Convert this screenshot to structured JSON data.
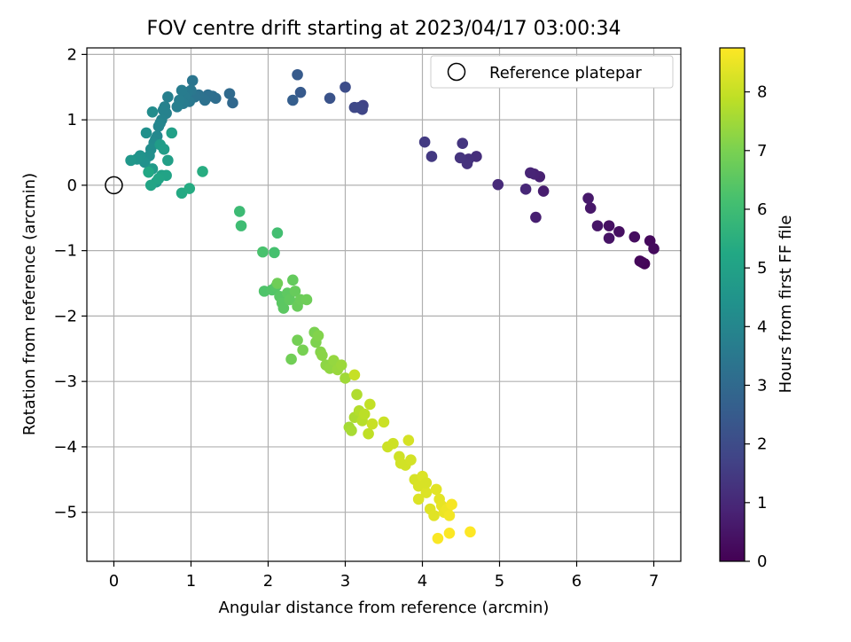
{
  "chart_data": {
    "type": "scatter",
    "title": "FOV centre drift starting at 2023/04/17 03:00:34",
    "xlabel": "Angular distance from reference (arcmin)",
    "ylabel": "Rotation from reference (arcmin)",
    "xlim": [
      -0.35,
      7.35
    ],
    "ylim": [
      -5.75,
      2.1
    ],
    "xticks": [
      0,
      1,
      2,
      3,
      4,
      5,
      6,
      7
    ],
    "xtick_labels": [
      "0",
      "1",
      "2",
      "3",
      "4",
      "5",
      "6",
      "7"
    ],
    "yticks": [
      2,
      1,
      0,
      -1,
      -2,
      -3,
      -4,
      -5
    ],
    "ytick_labels": [
      "2",
      "1",
      "0",
      "−1",
      "−2",
      "−3",
      "−4",
      "−5"
    ],
    "grid": true,
    "legend_position": "top-right",
    "legend": [
      {
        "label": "Reference platepar",
        "marker": "open-circle"
      }
    ],
    "reference_point": {
      "x": 0,
      "y": 0
    },
    "colorbar": {
      "label": "Hours from first FF file",
      "range": [
        0,
        8.75
      ],
      "ticks": [
        0,
        1,
        2,
        3,
        4,
        5,
        6,
        7,
        8
      ],
      "tick_labels": [
        "0",
        "1",
        "2",
        "3",
        "4",
        "5",
        "6",
        "7",
        "8"
      ],
      "colormap": "viridis"
    },
    "points": [
      [
        6.88,
        -1.2,
        0.05
      ],
      [
        6.85,
        -1.18,
        0.1
      ],
      [
        6.82,
        -1.16,
        0.15
      ],
      [
        6.95,
        -0.85,
        0.2
      ],
      [
        7.0,
        -0.97,
        0.25
      ],
      [
        6.75,
        -0.79,
        0.3
      ],
      [
        6.55,
        -0.71,
        0.35
      ],
      [
        6.42,
        -0.62,
        0.4
      ],
      [
        6.42,
        -0.81,
        0.45
      ],
      [
        6.27,
        -0.62,
        0.5
      ],
      [
        6.18,
        -0.35,
        0.55
      ],
      [
        6.15,
        -0.2,
        0.6
      ],
      [
        5.57,
        -0.09,
        0.7
      ],
      [
        5.47,
        -0.49,
        0.75
      ],
      [
        5.52,
        0.13,
        0.8
      ],
      [
        5.45,
        0.17,
        0.85
      ],
      [
        5.4,
        0.19,
        0.9
      ],
      [
        5.34,
        -0.06,
        0.95
      ],
      [
        4.98,
        0.01,
        1.05
      ],
      [
        4.7,
        0.44,
        1.15
      ],
      [
        4.6,
        0.4,
        1.2
      ],
      [
        4.58,
        0.33,
        1.25
      ],
      [
        4.49,
        0.42,
        1.3
      ],
      [
        4.52,
        0.64,
        1.35
      ],
      [
        4.12,
        0.44,
        1.45
      ],
      [
        4.03,
        0.66,
        1.5
      ],
      [
        3.23,
        1.22,
        1.75
      ],
      [
        3.22,
        1.16,
        1.8
      ],
      [
        3.18,
        1.19,
        1.85
      ],
      [
        3.12,
        1.19,
        1.9
      ],
      [
        3.0,
        1.5,
        2.05
      ],
      [
        2.8,
        1.33,
        2.25
      ],
      [
        2.42,
        1.42,
        2.45
      ],
      [
        2.38,
        1.69,
        2.5
      ],
      [
        2.32,
        1.3,
        2.6
      ],
      [
        1.54,
        1.26,
        2.95
      ],
      [
        1.5,
        1.4,
        3.0
      ],
      [
        1.32,
        1.33,
        3.1
      ],
      [
        1.28,
        1.36,
        3.15
      ],
      [
        1.22,
        1.38,
        3.2
      ],
      [
        1.18,
        1.3,
        3.25
      ],
      [
        1.1,
        1.38,
        3.3
      ],
      [
        1.05,
        1.35,
        3.35
      ],
      [
        1.02,
        1.6,
        3.4
      ],
      [
        1.0,
        1.45,
        3.45
      ],
      [
        0.98,
        1.28,
        3.5
      ],
      [
        0.95,
        1.42,
        3.55
      ],
      [
        0.92,
        1.35,
        3.6
      ],
      [
        0.9,
        1.25,
        3.62
      ],
      [
        0.88,
        1.45,
        3.65
      ],
      [
        0.85,
        1.3,
        3.68
      ],
      [
        0.82,
        1.2,
        3.7
      ],
      [
        0.7,
        1.35,
        3.75
      ],
      [
        0.68,
        1.1,
        3.8
      ],
      [
        0.66,
        1.2,
        3.82
      ],
      [
        0.64,
        1.15,
        3.85
      ],
      [
        0.62,
        1.0,
        3.9
      ],
      [
        0.6,
        0.95,
        3.95
      ],
      [
        0.58,
        0.9,
        4.0
      ],
      [
        0.56,
        0.75,
        4.05
      ],
      [
        0.54,
        0.7,
        4.1
      ],
      [
        0.52,
        0.65,
        4.15
      ],
      [
        0.5,
        1.12,
        4.2
      ],
      [
        0.48,
        0.55,
        4.25
      ],
      [
        0.46,
        0.45,
        4.3
      ],
      [
        0.42,
        0.8,
        4.35
      ],
      [
        0.4,
        0.35,
        4.4
      ],
      [
        0.34,
        0.45,
        4.45
      ],
      [
        0.3,
        0.4,
        4.5
      ],
      [
        0.22,
        0.38,
        4.6
      ],
      [
        0.5,
        0.25,
        4.7
      ],
      [
        0.55,
        0.05,
        4.75
      ],
      [
        0.6,
        0.62,
        4.8
      ],
      [
        0.65,
        0.55,
        4.85
      ],
      [
        0.7,
        0.38,
        4.9
      ],
      [
        0.75,
        0.8,
        4.95
      ],
      [
        0.62,
        0.15,
        5.0
      ],
      [
        0.68,
        0.15,
        5.05
      ],
      [
        0.48,
        0.0,
        5.1
      ],
      [
        0.58,
        0.1,
        5.15
      ],
      [
        0.45,
        0.2,
        5.2
      ],
      [
        0.88,
        -0.12,
        5.3
      ],
      [
        0.98,
        -0.05,
        5.35
      ],
      [
        1.15,
        0.21,
        5.4
      ],
      [
        1.63,
        -0.4,
        5.95
      ],
      [
        1.65,
        -0.62,
        6.0
      ],
      [
        2.12,
        -0.73,
        6.1
      ],
      [
        2.08,
        -1.03,
        6.15
      ],
      [
        1.93,
        -1.02,
        6.2
      ],
      [
        1.95,
        -1.62,
        6.3
      ],
      [
        2.05,
        -1.6,
        6.35
      ],
      [
        2.1,
        -1.55,
        6.4
      ],
      [
        2.15,
        -1.7,
        6.45
      ],
      [
        2.18,
        -1.8,
        6.5
      ],
      [
        2.2,
        -1.88,
        6.52
      ],
      [
        2.25,
        -1.65,
        6.55
      ],
      [
        2.28,
        -1.75,
        6.6
      ],
      [
        2.32,
        -1.45,
        6.65
      ],
      [
        2.35,
        -1.62,
        6.7
      ],
      [
        2.38,
        -1.85,
        6.72
      ],
      [
        2.42,
        -1.75,
        6.75
      ],
      [
        2.5,
        -1.75,
        6.8
      ],
      [
        2.12,
        -1.5,
        6.82
      ],
      [
        2.3,
        -2.66,
        6.85
      ],
      [
        2.38,
        -2.37,
        6.9
      ],
      [
        2.45,
        -2.52,
        6.95
      ],
      [
        2.6,
        -2.25,
        7.0
      ],
      [
        2.62,
        -2.4,
        7.05
      ],
      [
        2.65,
        -2.3,
        7.1
      ],
      [
        2.68,
        -2.55,
        7.15
      ],
      [
        2.7,
        -2.6,
        7.2
      ],
      [
        2.75,
        -2.75,
        7.25
      ],
      [
        2.8,
        -2.8,
        7.3
      ],
      [
        2.85,
        -2.68,
        7.35
      ],
      [
        2.9,
        -2.82,
        7.4
      ],
      [
        2.95,
        -2.75,
        7.45
      ],
      [
        3.0,
        -2.95,
        7.5
      ],
      [
        3.05,
        -3.7,
        7.55
      ],
      [
        3.08,
        -3.75,
        7.6
      ],
      [
        3.12,
        -3.55,
        7.65
      ],
      [
        3.15,
        -3.2,
        7.7
      ],
      [
        3.18,
        -3.45,
        7.75
      ],
      [
        3.22,
        -3.6,
        7.8
      ],
      [
        3.25,
        -3.5,
        7.85
      ],
      [
        3.3,
        -3.8,
        7.9
      ],
      [
        3.32,
        -3.35,
        7.95
      ],
      [
        3.12,
        -2.9,
        8.0
      ],
      [
        3.35,
        -3.65,
        8.02
      ],
      [
        3.5,
        -3.62,
        8.05
      ],
      [
        3.55,
        -4.0,
        8.08
      ],
      [
        3.62,
        -3.95,
        8.1
      ],
      [
        3.7,
        -4.15,
        8.12
      ],
      [
        3.78,
        -4.28,
        8.15
      ],
      [
        3.85,
        -4.2,
        8.18
      ],
      [
        3.82,
        -3.9,
        8.2
      ],
      [
        3.9,
        -4.5,
        8.22
      ],
      [
        3.95,
        -4.6,
        8.25
      ],
      [
        4.0,
        -4.45,
        8.28
      ],
      [
        4.05,
        -4.7,
        8.3
      ],
      [
        4.1,
        -4.95,
        8.32
      ],
      [
        4.15,
        -5.05,
        8.35
      ],
      [
        4.18,
        -4.65,
        8.38
      ],
      [
        4.22,
        -4.8,
        8.4
      ],
      [
        4.25,
        -4.9,
        8.45
      ],
      [
        4.28,
        -5.0,
        8.5
      ],
      [
        4.32,
        -4.95,
        8.55
      ],
      [
        4.35,
        -5.05,
        8.6
      ],
      [
        4.38,
        -4.88,
        8.65
      ],
      [
        4.2,
        -5.4,
        8.7
      ],
      [
        4.35,
        -5.32,
        8.72
      ],
      [
        4.62,
        -5.3,
        8.75
      ],
      [
        3.95,
        -4.8,
        8.3
      ],
      [
        4.05,
        -4.55,
        8.25
      ],
      [
        3.72,
        -4.25,
        8.15
      ]
    ]
  }
}
